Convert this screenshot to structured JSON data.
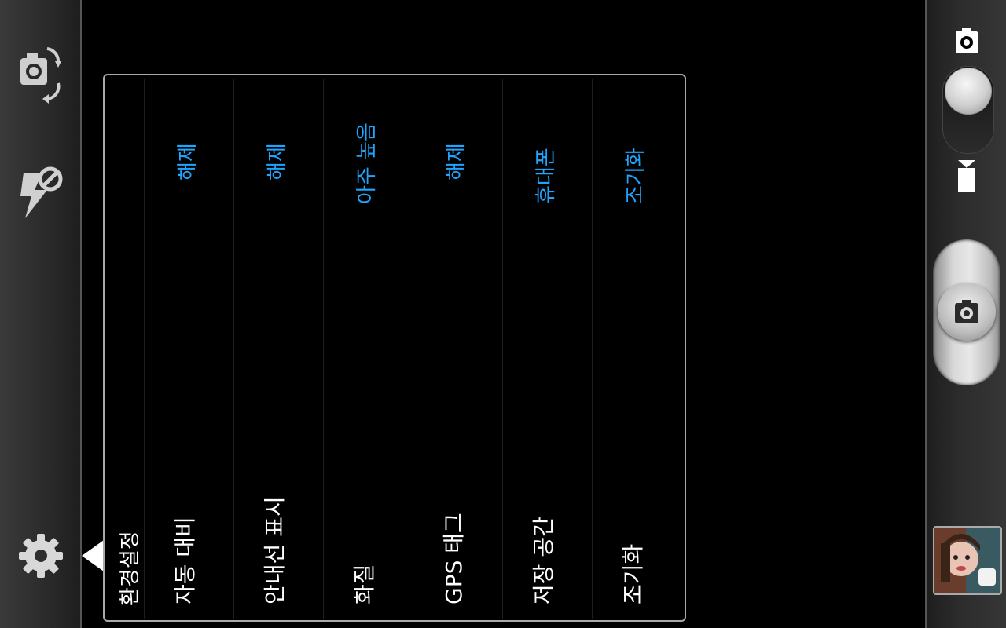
{
  "left_bar": {
    "icons": [
      "camera-switch-icon",
      "flash-off-icon",
      "gear-icon"
    ]
  },
  "right_bar": {
    "mode_icons": [
      "camera-mode-icon",
      "video-mode-icon"
    ],
    "shutter_icon": "camera-icon",
    "thumbnail": "last-photo-thumbnail"
  },
  "settings": {
    "title": "환경설정",
    "rows": [
      {
        "label": "자동 대비",
        "value": "해제"
      },
      {
        "label": "안내선 표시",
        "value": "해제"
      },
      {
        "label": "화질",
        "value": "아주 높음"
      },
      {
        "label": "GPS 태그",
        "value": "해제"
      },
      {
        "label": "저장 공간",
        "value": "휴대폰"
      },
      {
        "label": "조기화",
        "value": "조기화"
      }
    ]
  },
  "colors": {
    "value_text": "#1ea6ff",
    "label_text": "#ffffff",
    "panel_border": "#a9a9a9"
  }
}
